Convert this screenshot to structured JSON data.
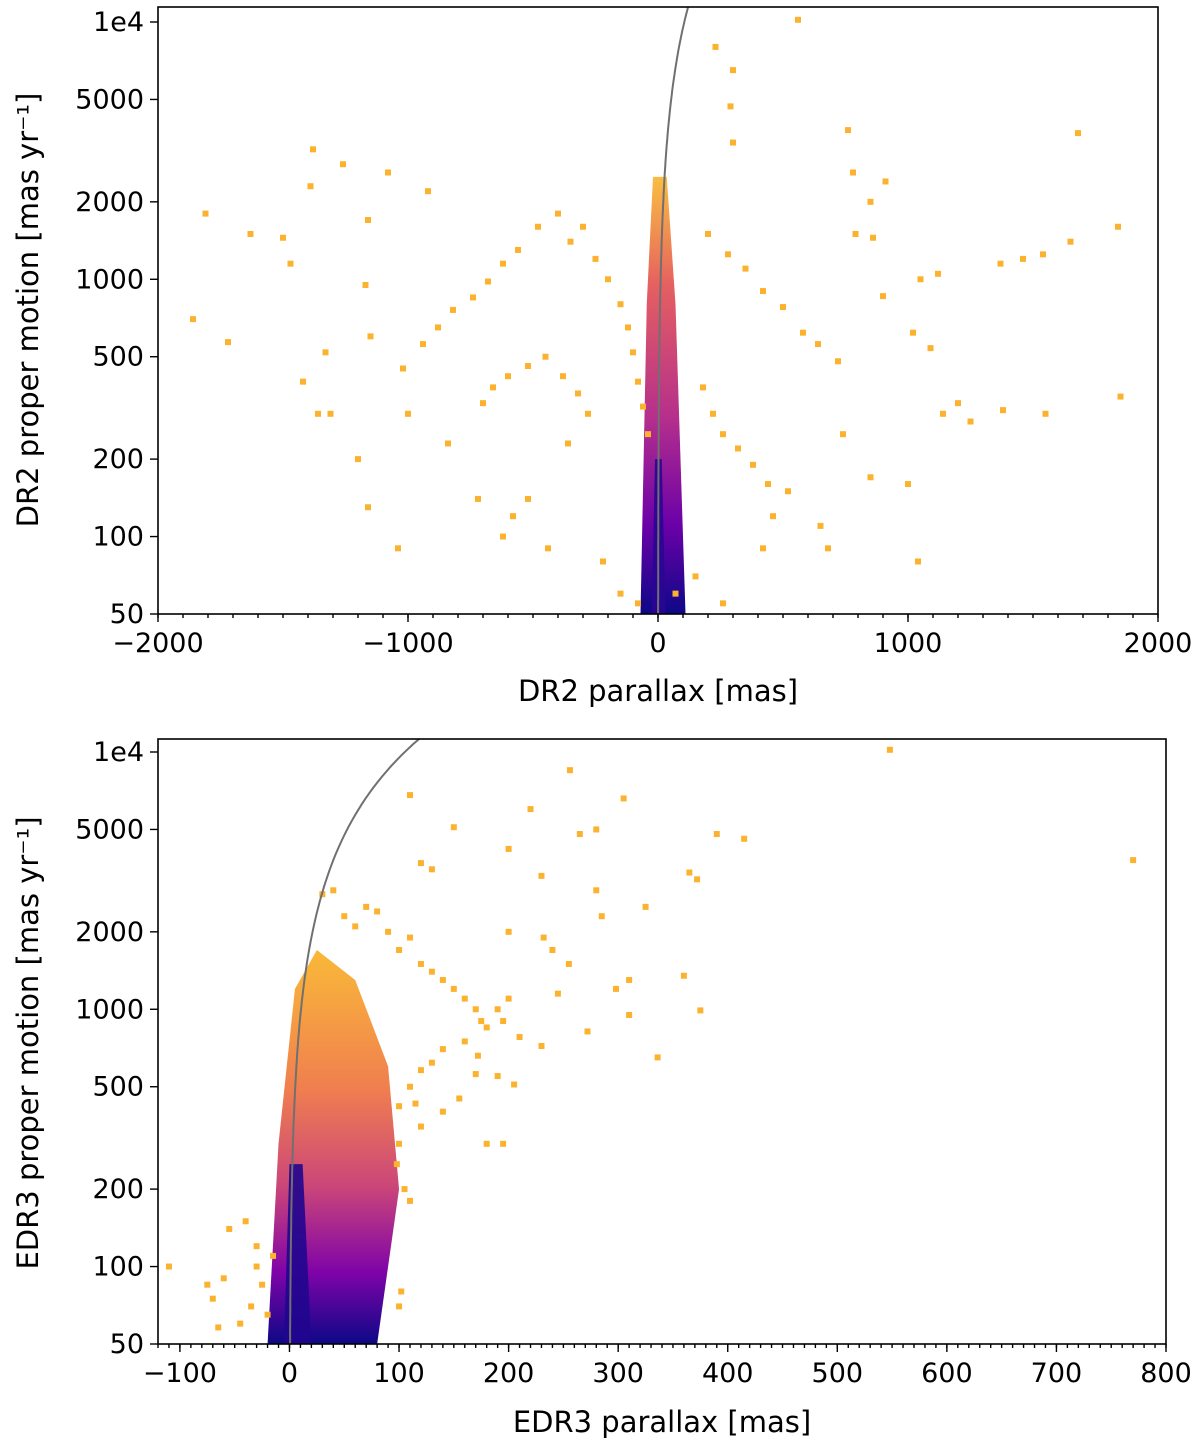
{
  "chart_data": [
    {
      "type": "scatter",
      "title": "",
      "xlabel": "DR2 parallax [mas]",
      "ylabel": "DR2 proper motion [mas yr⁻¹]",
      "xlim": [
        -2000,
        2000
      ],
      "ylim": [
        50,
        11000
      ],
      "yscale": "log",
      "xticks": [
        -2000,
        -1000,
        0,
        1000,
        2000
      ],
      "xtick_labels": [
        "−2000",
        "−1000",
        "0",
        "1000",
        "2000"
      ],
      "yticks": [
        50,
        100,
        200,
        500,
        1000,
        2000,
        5000,
        10000
      ],
      "ytick_labels": [
        "50",
        "100",
        "200",
        "500",
        "1000",
        "2000",
        "5000",
        "1e4"
      ],
      "colormap": "plasma (density)",
      "curve": {
        "description": "boundary curve pm = k * parallax",
        "k": 95
      },
      "points": [
        [
          560,
          10200
        ],
        [
          230,
          8000
        ],
        [
          300,
          6500
        ],
        [
          290,
          4700
        ],
        [
          300,
          3400
        ],
        [
          1680,
          3700
        ],
        [
          760,
          3800
        ],
        [
          -1380,
          3200
        ],
        [
          -1260,
          2800
        ],
        [
          -1080,
          2600
        ],
        [
          780,
          2600
        ],
        [
          910,
          2400
        ],
        [
          -1390,
          2300
        ],
        [
          -920,
          2200
        ],
        [
          850,
          2000
        ],
        [
          -1810,
          1800
        ],
        [
          -1160,
          1700
        ],
        [
          1840,
          1600
        ],
        [
          -1630,
          1500
        ],
        [
          -1500,
          1450
        ],
        [
          790,
          1500
        ],
        [
          860,
          1450
        ],
        [
          1650,
          1400
        ],
        [
          -1470,
          1150
        ],
        [
          1540,
          1250
        ],
        [
          1460,
          1200
        ],
        [
          1370,
          1150
        ],
        [
          1050,
          1000
        ],
        [
          1120,
          1050
        ],
        [
          -1170,
          950
        ],
        [
          -1860,
          700
        ],
        [
          -1720,
          570
        ],
        [
          -1330,
          520
        ],
        [
          -1150,
          600
        ],
        [
          -1420,
          400
        ],
        [
          -1310,
          300
        ],
        [
          -1360,
          300
        ],
        [
          -1000,
          300
        ],
        [
          -1020,
          450
        ],
        [
          -1200,
          200
        ],
        [
          -1160,
          130
        ],
        [
          -1040,
          90
        ],
        [
          -840,
          230
        ],
        [
          -720,
          140
        ],
        [
          -620,
          100
        ],
        [
          900,
          860
        ],
        [
          1020,
          620
        ],
        [
          1090,
          540
        ],
        [
          1200,
          330
        ],
        [
          1140,
          300
        ],
        [
          1250,
          280
        ],
        [
          1380,
          310
        ],
        [
          1550,
          300
        ],
        [
          1850,
          350
        ],
        [
          1040,
          80
        ],
        [
          1000,
          160
        ],
        [
          850,
          170
        ],
        [
          740,
          250
        ],
        [
          650,
          110
        ],
        [
          680,
          90
        ],
        [
          420,
          90
        ],
        [
          460,
          120
        ],
        [
          520,
          150
        ],
        [
          -440,
          90
        ],
        [
          -520,
          140
        ],
        [
          -580,
          120
        ],
        [
          -220,
          80
        ],
        [
          -150,
          60
        ],
        [
          -80,
          55
        ],
        [
          70,
          60
        ],
        [
          150,
          70
        ],
        [
          260,
          55
        ],
        [
          -300,
          1600
        ],
        [
          -350,
          1400
        ],
        [
          -250,
          1200
        ],
        [
          -200,
          1000
        ],
        [
          -150,
          800
        ],
        [
          -120,
          650
        ],
        [
          -100,
          520
        ],
        [
          -80,
          400
        ],
        [
          -60,
          320
        ],
        [
          -40,
          250
        ],
        [
          200,
          1500
        ],
        [
          280,
          1250
        ],
        [
          350,
          1100
        ],
        [
          420,
          900
        ],
        [
          500,
          780
        ],
        [
          580,
          620
        ],
        [
          640,
          560
        ],
        [
          720,
          480
        ],
        [
          180,
          380
        ],
        [
          220,
          300
        ],
        [
          260,
          250
        ],
        [
          320,
          220
        ],
        [
          380,
          190
        ],
        [
          440,
          160
        ],
        [
          -400,
          1800
        ],
        [
          -480,
          1600
        ],
        [
          -560,
          1300
        ],
        [
          -620,
          1150
        ],
        [
          -680,
          980
        ],
        [
          -740,
          850
        ],
        [
          -820,
          760
        ],
        [
          -880,
          650
        ],
        [
          -940,
          560
        ],
        [
          -450,
          500
        ],
        [
          -520,
          460
        ],
        [
          -600,
          420
        ],
        [
          -660,
          380
        ],
        [
          -700,
          330
        ],
        [
          -380,
          420
        ],
        [
          -320,
          360
        ],
        [
          -280,
          300
        ],
        [
          -360,
          230
        ]
      ]
    },
    {
      "type": "scatter",
      "title": "",
      "xlabel": "EDR3 parallax [mas]",
      "ylabel": "EDR3 proper motion [mas yr⁻¹]",
      "xlim": [
        -120,
        800
      ],
      "ylim": [
        50,
        11000
      ],
      "yscale": "log",
      "xticks": [
        -100,
        0,
        100,
        200,
        300,
        400,
        500,
        600,
        700,
        800
      ],
      "xtick_labels": [
        "−100",
        "0",
        "100",
        "200",
        "300",
        "400",
        "500",
        "600",
        "700",
        "800"
      ],
      "yticks": [
        50,
        100,
        200,
        500,
        1000,
        2000,
        5000,
        10000
      ],
      "ytick_labels": [
        "50",
        "100",
        "200",
        "500",
        "1000",
        "2000",
        "5000",
        "1e4"
      ],
      "colormap": "plasma (density)",
      "curve": {
        "description": "boundary curve pm = k * parallax",
        "k": 95
      },
      "points": [
        [
          548,
          10200
        ],
        [
          256,
          8500
        ],
        [
          305,
          6600
        ],
        [
          220,
          6000
        ],
        [
          110,
          6800
        ],
        [
          280,
          5000
        ],
        [
          265,
          4800
        ],
        [
          150,
          5100
        ],
        [
          390,
          4800
        ],
        [
          415,
          4600
        ],
        [
          770,
          3800
        ],
        [
          365,
          3400
        ],
        [
          372,
          3200
        ],
        [
          120,
          3700
        ],
        [
          130,
          3500
        ],
        [
          200,
          4200
        ],
        [
          230,
          3300
        ],
        [
          280,
          2900
        ],
        [
          325,
          2500
        ],
        [
          285,
          2300
        ],
        [
          232,
          1900
        ],
        [
          200,
          2000
        ],
        [
          240,
          1700
        ],
        [
          255,
          1500
        ],
        [
          360,
          1350
        ],
        [
          310,
          1300
        ],
        [
          298,
          1200
        ],
        [
          245,
          1150
        ],
        [
          200,
          1100
        ],
        [
          190,
          1000
        ],
        [
          375,
          990
        ],
        [
          310,
          950
        ],
        [
          272,
          820
        ],
        [
          195,
          900
        ],
        [
          210,
          780
        ],
        [
          230,
          720
        ],
        [
          172,
          660
        ],
        [
          336,
          650
        ],
        [
          190,
          550
        ],
        [
          170,
          560
        ],
        [
          155,
          450
        ],
        [
          205,
          510
        ],
        [
          180,
          300
        ],
        [
          195,
          300
        ],
        [
          140,
          400
        ],
        [
          120,
          350
        ],
        [
          100,
          300
        ],
        [
          98,
          250
        ],
        [
          105,
          200
        ],
        [
          110,
          180
        ],
        [
          102,
          80
        ],
        [
          100,
          70
        ],
        [
          -110,
          100
        ],
        [
          -70,
          75
        ],
        [
          -55,
          140
        ],
        [
          -40,
          150
        ],
        [
          -30,
          120
        ],
        [
          -20,
          65
        ],
        [
          -35,
          70
        ],
        [
          -45,
          60
        ],
        [
          -65,
          58
        ],
        [
          -75,
          85
        ],
        [
          -60,
          90
        ],
        [
          -25,
          85
        ],
        [
          -30,
          100
        ],
        [
          -15,
          110
        ],
        [
          30,
          2800
        ],
        [
          40,
          2900
        ],
        [
          50,
          2300
        ],
        [
          60,
          2100
        ],
        [
          70,
          2500
        ],
        [
          80,
          2400
        ],
        [
          90,
          2000
        ],
        [
          100,
          1700
        ],
        [
          110,
          1900
        ],
        [
          120,
          1500
        ],
        [
          130,
          1400
        ],
        [
          140,
          1300
        ],
        [
          150,
          1200
        ],
        [
          160,
          1100
        ],
        [
          170,
          1000
        ],
        [
          175,
          900
        ],
        [
          180,
          850
        ],
        [
          160,
          750
        ],
        [
          140,
          700
        ],
        [
          130,
          620
        ],
        [
          120,
          580
        ],
        [
          110,
          500
        ],
        [
          115,
          430
        ],
        [
          100,
          420
        ]
      ]
    }
  ]
}
